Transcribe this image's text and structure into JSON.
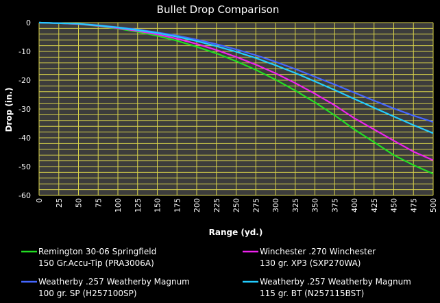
{
  "chart_data": {
    "type": "line",
    "title": "Bullet Drop Comparison",
    "xlabel": "Range (yd.)",
    "ylabel": "Drop (in.)",
    "xlim": [
      0,
      500
    ],
    "ylim": [
      -60,
      0
    ],
    "x_ticks": [
      0,
      25,
      50,
      75,
      100,
      125,
      150,
      175,
      200,
      225,
      250,
      275,
      300,
      325,
      350,
      375,
      400,
      425,
      450,
      475,
      500
    ],
    "y_ticks": [
      0,
      -10,
      -20,
      -30,
      -40,
      -50,
      -60
    ],
    "grid": true,
    "legend_position": "bottom",
    "background_color": "#000000",
    "plot_background_color": "#3c3c3c",
    "grid_color": "#d8d24a",
    "x": [
      0,
      25,
      50,
      75,
      100,
      125,
      150,
      175,
      200,
      225,
      250,
      275,
      300,
      325,
      350,
      375,
      400,
      425,
      450,
      475,
      500
    ],
    "series": [
      {
        "line1": "Remington 30-06 Springfield",
        "line2": "150 Gr.Accu-Tip (PRA3006A)",
        "color": "#22dd22",
        "values": [
          0,
          -0.2,
          -0.5,
          -1.2,
          -2.1,
          -3.2,
          -4.6,
          -6.3,
          -8.4,
          -10.7,
          -13.4,
          -16.4,
          -19.8,
          -23.6,
          -27.7,
          -32.2,
          -37.1,
          -41.5,
          -46.0,
          -49.5,
          -52.5
        ]
      },
      {
        "line1": "Winchester .270 Winchester",
        "line2": "130 gr. XP3 (SXP270WA)",
        "color": "#ee22ee",
        "values": [
          0,
          -0.2,
          -0.5,
          -1.1,
          -1.9,
          -2.9,
          -4.1,
          -5.6,
          -7.4,
          -9.5,
          -11.9,
          -14.6,
          -17.6,
          -21.0,
          -24.7,
          -28.7,
          -33.2,
          -37.1,
          -41.0,
          -44.8,
          -47.8
        ]
      },
      {
        "line1": "Weatherby .257 Weatherby Magnum",
        "line2": "100 gr. SP (H257100SP)",
        "color": "#4466ff",
        "values": [
          0,
          -0.2,
          -0.4,
          -0.9,
          -1.6,
          -2.4,
          -3.4,
          -4.5,
          -5.9,
          -7.5,
          -9.3,
          -11.3,
          -13.6,
          -16.1,
          -18.8,
          -21.5,
          -24.3,
          -27.1,
          -29.8,
          -32.3,
          -34.5
        ]
      },
      {
        "line1": "Weatherby .257 Weatherby Magnum",
        "line2": "115 gr. BT (N257115BST)",
        "color": "#22ccff",
        "values": [
          0,
          -0.2,
          -0.4,
          -1.0,
          -1.7,
          -2.6,
          -3.6,
          -4.9,
          -6.4,
          -8.2,
          -10.1,
          -12.3,
          -14.8,
          -17.5,
          -20.4,
          -23.4,
          -26.5,
          -29.6,
          -32.6,
          -35.6,
          -38.4
        ]
      }
    ]
  }
}
